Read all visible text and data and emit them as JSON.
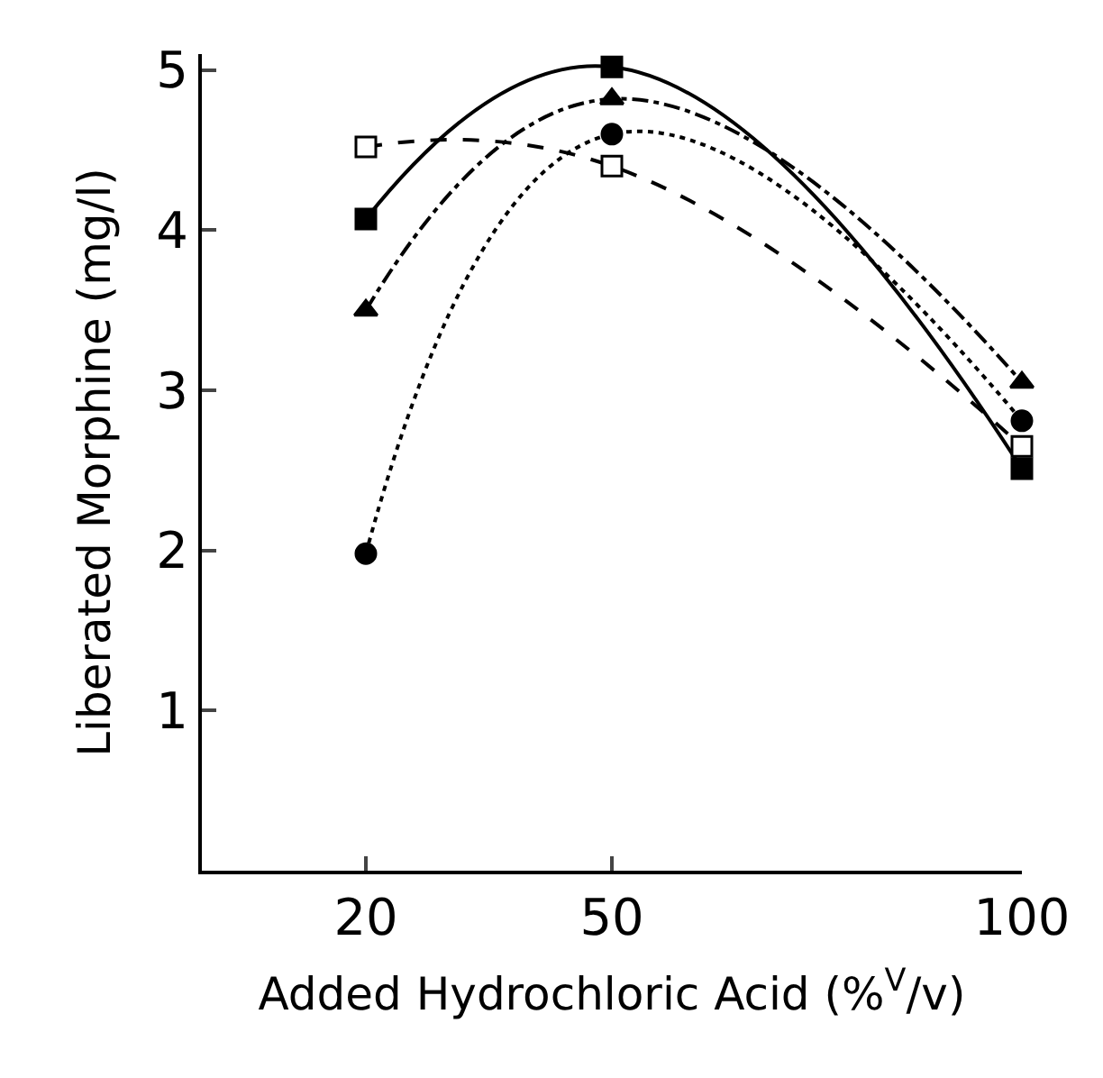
{
  "chart_data": {
    "type": "line",
    "xlabel": "Added Hydrochloric Acid (%$^{V}$/v)",
    "ylabel": "Liberated Morphine (mg/l)",
    "x": [
      20,
      50,
      100
    ],
    "xlim": [
      0,
      100
    ],
    "xticks": [
      20,
      50,
      100
    ],
    "ylim": [
      0,
      5.1
    ],
    "yticks": [
      1,
      2,
      3,
      4,
      5
    ],
    "grid": false,
    "series": [
      {
        "color": "#000000",
        "marker": "square",
        "line_style": "solid",
        "values": [
          4.07,
          5.02,
          2.51
        ]
      },
      {
        "color": "#000000",
        "marker": "triangle",
        "line_style": "dashdot",
        "values": [
          3.5,
          4.82,
          3.05
        ]
      },
      {
        "color": "#000000",
        "marker": "circle",
        "line_style": "dotted",
        "values": [
          1.98,
          4.6,
          2.81
        ]
      },
      {
        "color": "#000000",
        "marker": "square",
        "colors": [
          "#ffffff",
          "#ffffff",
          "#ffffff"
        ],
        "line_style": "dashed",
        "values": [
          4.52,
          4.4,
          2.65
        ]
      }
    ]
  }
}
